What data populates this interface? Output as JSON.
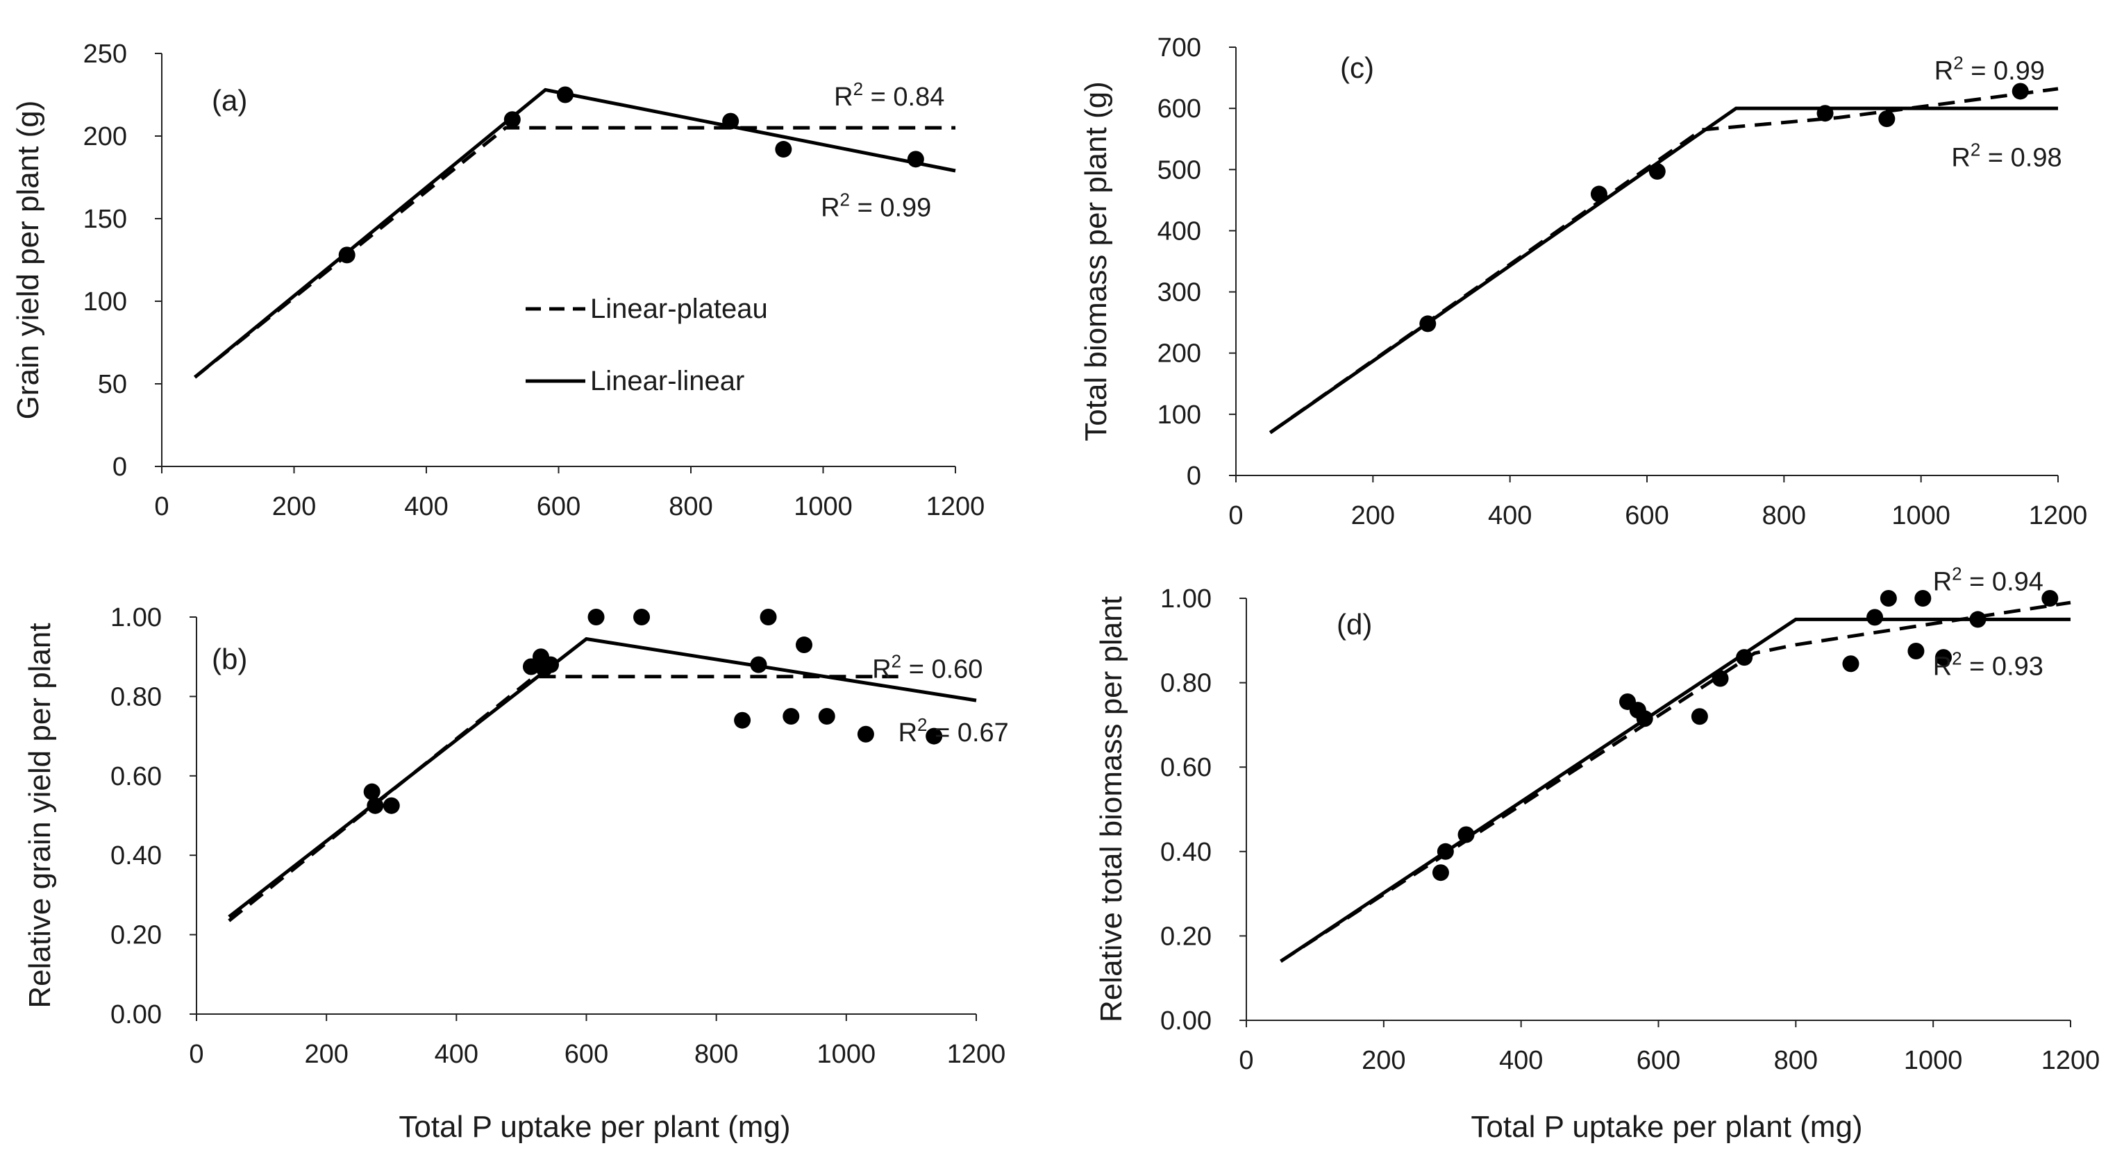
{
  "figure": {
    "shared_xlabel": "Total P uptake per plant (mg)",
    "legend": {
      "dashed": "Linear-plateau",
      "solid": "Linear-linear"
    }
  },
  "chart_data": [
    {
      "type": "scatter",
      "label": "(a)",
      "ylabel": "Grain yield per plant (g)",
      "xlabel": "",
      "xlim": [
        0,
        1200
      ],
      "ylim": [
        0,
        250
      ],
      "xticks": [
        0,
        200,
        400,
        600,
        800,
        1000,
        1200
      ],
      "yticks": [
        0,
        50,
        100,
        150,
        200,
        250
      ],
      "ytick_labels": [
        "0",
        "50",
        "100",
        "150",
        "200",
        "250"
      ],
      "points": [
        [
          280,
          128
        ],
        [
          530,
          210
        ],
        [
          610,
          225
        ],
        [
          860,
          209
        ],
        [
          940,
          192
        ],
        [
          1140,
          186
        ]
      ],
      "lines": {
        "dashed": [
          [
            50,
            54
          ],
          [
            520,
            205
          ],
          [
            1200,
            205
          ]
        ],
        "solid": [
          [
            50,
            54
          ],
          [
            580,
            228
          ],
          [
            1200,
            179
          ]
        ]
      },
      "annotations": [
        {
          "pre": "R",
          "sup": "2",
          "post": " = 0.84",
          "x": 1100,
          "y": 224,
          "anchor": "middle"
        },
        {
          "pre": "R",
          "sup": "2",
          "post": " = 0.99",
          "x": 1080,
          "y": 157,
          "anchor": "middle"
        }
      ]
    },
    {
      "type": "scatter",
      "label": "(b)",
      "ylabel": "Relative grain yield per plant",
      "xlabel": "Total P uptake per plant (mg)",
      "xlim": [
        0,
        1200
      ],
      "ylim": [
        0,
        1
      ],
      "xticks": [
        0,
        200,
        400,
        600,
        800,
        1000,
        1200
      ],
      "yticks": [
        0,
        0.2,
        0.4,
        0.6,
        0.8,
        1.0
      ],
      "ytick_labels": [
        "0.00",
        "0.20",
        "0.40",
        "0.60",
        "0.80",
        "1.00"
      ],
      "points": [
        [
          270,
          0.56
        ],
        [
          275,
          0.525
        ],
        [
          300,
          0.525
        ],
        [
          515,
          0.875
        ],
        [
          530,
          0.9
        ],
        [
          535,
          0.87
        ],
        [
          545,
          0.88
        ],
        [
          615,
          1.0
        ],
        [
          685,
          1.0
        ],
        [
          840,
          0.74
        ],
        [
          865,
          0.88
        ],
        [
          880,
          1.0
        ],
        [
          915,
          0.75
        ],
        [
          935,
          0.93
        ],
        [
          970,
          0.75
        ],
        [
          1030,
          0.705
        ],
        [
          1135,
          0.7
        ]
      ],
      "lines": {
        "dashed": [
          [
            50,
            0.235
          ],
          [
            520,
            0.85
          ],
          [
            1080,
            0.85
          ]
        ],
        "solid": [
          [
            50,
            0.245
          ],
          [
            600,
            0.945
          ],
          [
            1200,
            0.79
          ]
        ]
      },
      "annotations": [
        {
          "pre": "R",
          "sup": "2",
          "post": " = 0.60",
          "x": 1125,
          "y": 0.87,
          "anchor": "middle"
        },
        {
          "pre": "R",
          "sup": "2",
          "post": " = 0.67",
          "x": 1250,
          "y": 0.71,
          "anchor": "end"
        }
      ]
    },
    {
      "type": "scatter",
      "label": "(c)",
      "ylabel": "Total biomass per plant (g)",
      "xlabel": "",
      "xlim": [
        0,
        1200
      ],
      "ylim": [
        0,
        700
      ],
      "xticks": [
        0,
        200,
        400,
        600,
        800,
        1000,
        1200
      ],
      "yticks": [
        0,
        100,
        200,
        300,
        400,
        500,
        600,
        700
      ],
      "ytick_labels": [
        "0",
        "100",
        "200",
        "300",
        "400",
        "500",
        "600",
        "700"
      ],
      "points": [
        [
          280,
          248
        ],
        [
          530,
          460
        ],
        [
          615,
          497
        ],
        [
          860,
          592
        ],
        [
          950,
          583
        ],
        [
          1145,
          628
        ]
      ],
      "lines": {
        "dashed": [
          [
            50,
            70
          ],
          [
            680,
            565
          ],
          [
            880,
            585
          ],
          [
            1200,
            632
          ]
        ],
        "solid": [
          [
            50,
            70
          ],
          [
            730,
            600
          ],
          [
            1200,
            600
          ]
        ]
      },
      "annotations": [
        {
          "pre": "R",
          "sup": "2",
          "post": " = 0.99",
          "x": 1100,
          "y": 662,
          "anchor": "middle"
        },
        {
          "pre": "R",
          "sup": "2",
          "post": " = 0.98",
          "x": 1125,
          "y": 520,
          "anchor": "middle"
        }
      ]
    },
    {
      "type": "scatter",
      "label": "(d)",
      "ylabel": "Relative total biomass per plant",
      "xlabel": "Total P uptake per plant (mg)",
      "xlim": [
        0,
        1200
      ],
      "ylim": [
        0,
        1
      ],
      "xticks": [
        0,
        200,
        400,
        600,
        800,
        1000,
        1200
      ],
      "yticks": [
        0,
        0.2,
        0.4,
        0.6,
        0.8,
        1.0
      ],
      "ytick_labels": [
        "0.00",
        "0.20",
        "0.40",
        "0.60",
        "0.80",
        "1.00"
      ],
      "points": [
        [
          283,
          0.35
        ],
        [
          290,
          0.4
        ],
        [
          320,
          0.44
        ],
        [
          555,
          0.755
        ],
        [
          570,
          0.735
        ],
        [
          580,
          0.715
        ],
        [
          660,
          0.72
        ],
        [
          690,
          0.81
        ],
        [
          725,
          0.86
        ],
        [
          880,
          0.845
        ],
        [
          915,
          0.955
        ],
        [
          935,
          1.0
        ],
        [
          975,
          0.875
        ],
        [
          985,
          1.0
        ],
        [
          1015,
          0.86
        ],
        [
          1065,
          0.95
        ],
        [
          1170,
          1.0
        ]
      ],
      "lines": {
        "dashed": [
          [
            50,
            0.14
          ],
          [
            740,
            0.87
          ],
          [
            800,
            0.89
          ],
          [
            1000,
            0.94
          ],
          [
            1200,
            0.99
          ]
        ],
        "solid": [
          [
            50,
            0.14
          ],
          [
            800,
            0.95
          ],
          [
            1200,
            0.95
          ]
        ]
      },
      "annotations": [
        {
          "pre": "R",
          "sup": "2",
          "post": " = 0.94",
          "x": 1080,
          "y": 1.04,
          "anchor": "middle"
        },
        {
          "pre": "R",
          "sup": "2",
          "post": " = 0.93",
          "x": 1080,
          "y": 0.84,
          "anchor": "middle"
        }
      ]
    }
  ]
}
